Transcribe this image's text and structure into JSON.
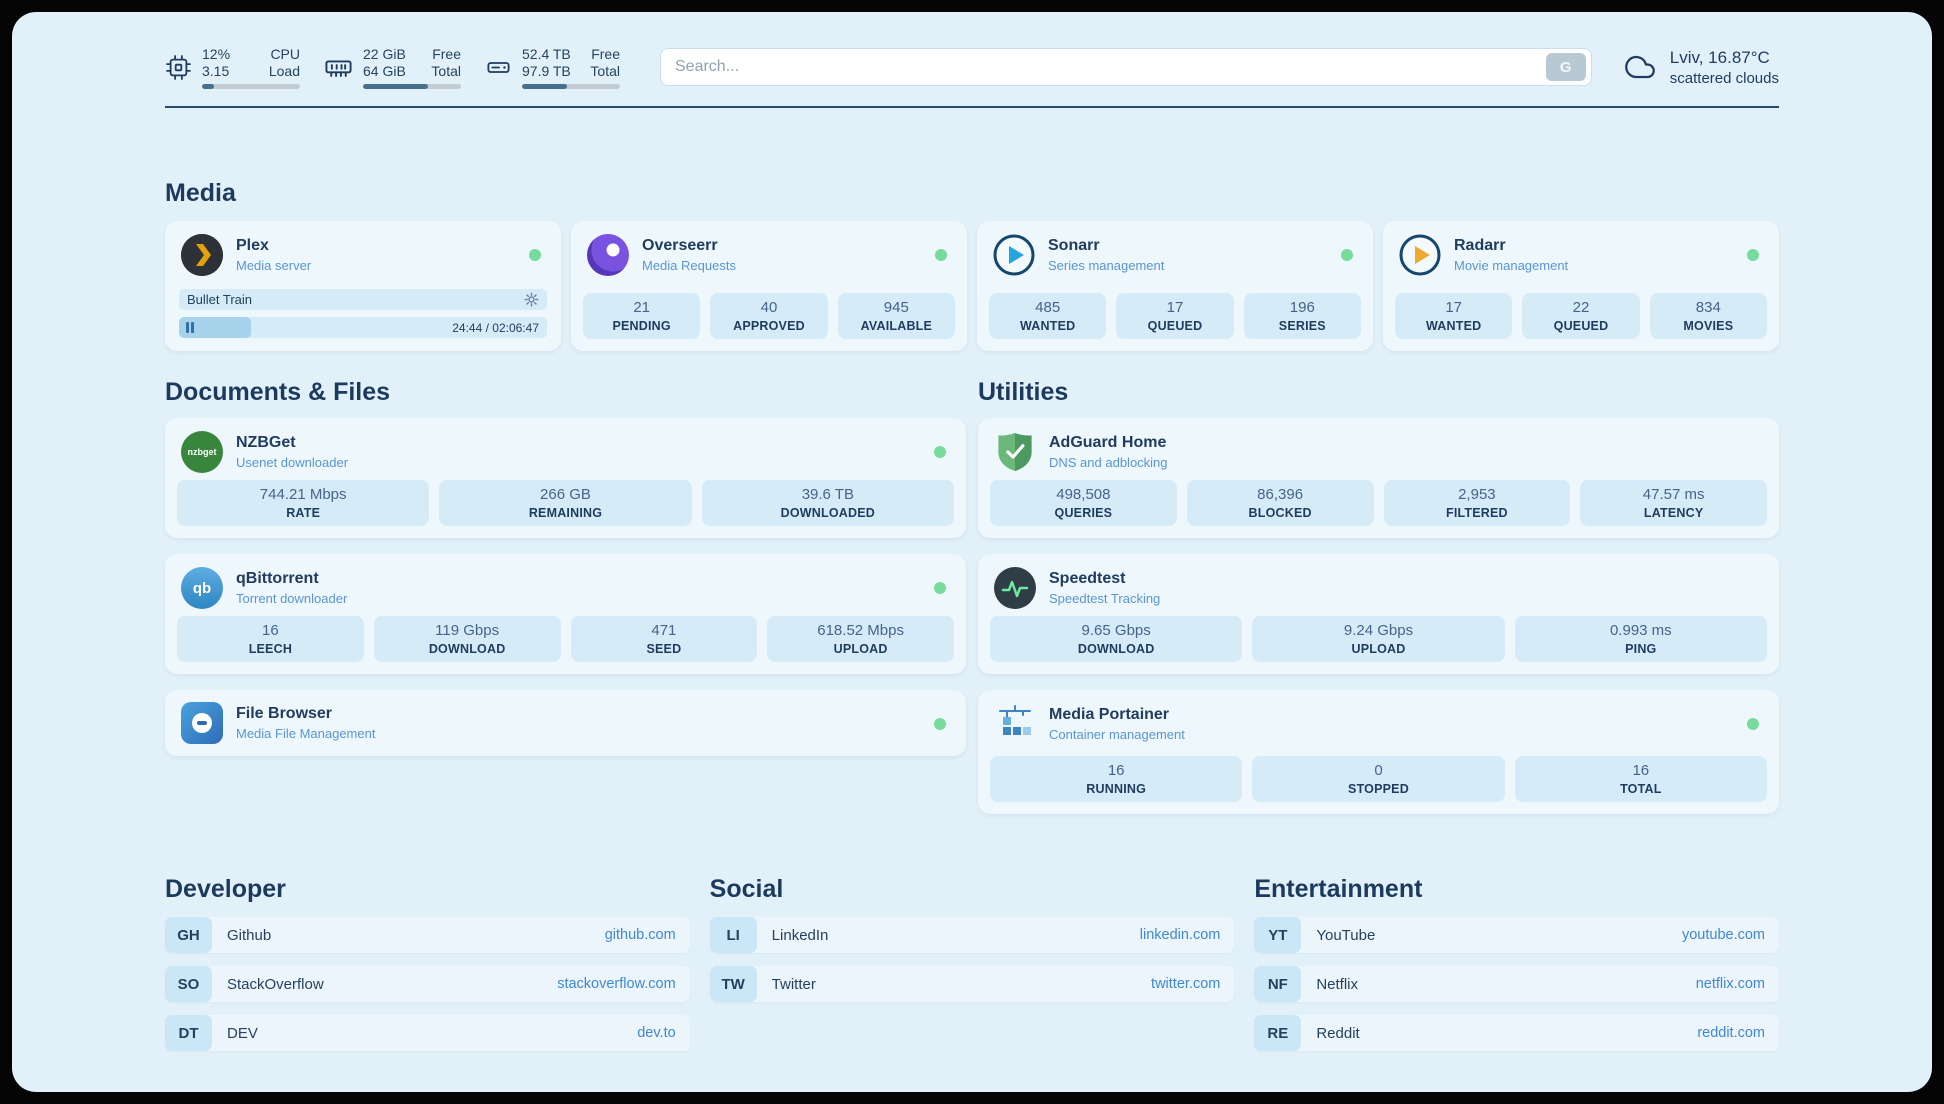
{
  "topbar": {
    "cpu": {
      "icon": "cpu-chip-icon",
      "value1": "12%",
      "value2": "3.15",
      "label1": "CPU",
      "label2": "Load",
      "percent": 12
    },
    "ram": {
      "icon": "ram-icon",
      "value1": "22 GiB",
      "value2": "64 GiB",
      "label1": "Free",
      "label2": "Total",
      "percent": 66
    },
    "disk": {
      "icon": "disk-icon",
      "value1": "52.4 TB",
      "value2": "97.9 TB",
      "label1": "Free",
      "label2": "Total",
      "percent": 46
    },
    "search": {
      "placeholder": "Search...",
      "engine_button": "G"
    },
    "weather": {
      "icon": "cloud-icon",
      "location": "Lviv, 16.87°C",
      "condition": "scattered clouds"
    }
  },
  "sections": {
    "media": "Media",
    "documents": "Documents & Files",
    "utilities": "Utilities",
    "developer": "Developer",
    "social": "Social",
    "entertainment": "Entertainment"
  },
  "apps": {
    "plex": {
      "name": "Plex",
      "subtitle": "Media server",
      "status": "online",
      "now_playing": "Bullet Train",
      "time": "24:44 / 02:06:47",
      "progress_percent": 19.5
    },
    "overseerr": {
      "name": "Overseerr",
      "subtitle": "Media Requests",
      "status": "online",
      "stats": [
        {
          "value": "21",
          "label": "PENDING"
        },
        {
          "value": "40",
          "label": "APPROVED"
        },
        {
          "value": "945",
          "label": "AVAILABLE"
        }
      ]
    },
    "sonarr": {
      "name": "Sonarr",
      "subtitle": "Series management",
      "status": "online",
      "stats": [
        {
          "value": "485",
          "label": "WANTED"
        },
        {
          "value": "17",
          "label": "QUEUED"
        },
        {
          "value": "196",
          "label": "SERIES"
        }
      ]
    },
    "radarr": {
      "name": "Radarr",
      "subtitle": "Movie management",
      "status": "online",
      "stats": [
        {
          "value": "17",
          "label": "WANTED"
        },
        {
          "value": "22",
          "label": "QUEUED"
        },
        {
          "value": "834",
          "label": "MOVIES"
        }
      ]
    },
    "nzbget": {
      "name": "NZBGet",
      "subtitle": "Usenet downloader",
      "status": "online",
      "icon_text": "nzbget",
      "stats": [
        {
          "value": "744.21 Mbps",
          "label": "RATE"
        },
        {
          "value": "266 GB",
          "label": "REMAINING"
        },
        {
          "value": "39.6 TB",
          "label": "DOWNLOADED"
        }
      ]
    },
    "qbittorrent": {
      "name": "qBittorrent",
      "subtitle": "Torrent downloader",
      "status": "online",
      "icon_text": "qb",
      "stats": [
        {
          "value": "16",
          "label": "LEECH"
        },
        {
          "value": "119 Gbps",
          "label": "DOWNLOAD"
        },
        {
          "value": "471",
          "label": "SEED"
        },
        {
          "value": "618.52 Mbps",
          "label": "UPLOAD"
        }
      ]
    },
    "filebrowser": {
      "name": "File Browser",
      "subtitle": "Media File Management",
      "status": "online"
    },
    "adguard": {
      "name": "AdGuard Home",
      "subtitle": "DNS and adblocking",
      "stats": [
        {
          "value": "498,508",
          "label": "QUERIES"
        },
        {
          "value": "86,396",
          "label": "BLOCKED"
        },
        {
          "value": "2,953",
          "label": "FILTERED"
        },
        {
          "value": "47.57 ms",
          "label": "LATENCY"
        }
      ]
    },
    "speedtest": {
      "name": "Speedtest",
      "subtitle": "Speedtest Tracking",
      "stats": [
        {
          "value": "9.65 Gbps",
          "label": "DOWNLOAD"
        },
        {
          "value": "9.24 Gbps",
          "label": "UPLOAD"
        },
        {
          "value": "0.993 ms",
          "label": "PING"
        }
      ]
    },
    "portainer": {
      "name": "Media Portainer",
      "subtitle": "Container management",
      "status": "online",
      "stats": [
        {
          "value": "16",
          "label": "RUNNING"
        },
        {
          "value": "0",
          "label": "STOPPED"
        },
        {
          "value": "16",
          "label": "TOTAL"
        }
      ]
    }
  },
  "bookmarks": {
    "developer": [
      {
        "abbr": "GH",
        "name": "Github",
        "url": "github.com"
      },
      {
        "abbr": "SO",
        "name": "StackOverflow",
        "url": "stackoverflow.com"
      },
      {
        "abbr": "DT",
        "name": "DEV",
        "url": "dev.to"
      }
    ],
    "social": [
      {
        "abbr": "LI",
        "name": "LinkedIn",
        "url": "linkedin.com"
      },
      {
        "abbr": "TW",
        "name": "Twitter",
        "url": "twitter.com"
      }
    ],
    "entertainment": [
      {
        "abbr": "YT",
        "name": "YouTube",
        "url": "youtube.com"
      },
      {
        "abbr": "NF",
        "name": "Netflix",
        "url": "netflix.com"
      },
      {
        "abbr": "RE",
        "name": "Reddit",
        "url": "reddit.com"
      }
    ]
  },
  "colors": {
    "status_online": "#76db9c",
    "accent_blue": "#3f88d8",
    "plex_gold": "#e5a00d"
  }
}
